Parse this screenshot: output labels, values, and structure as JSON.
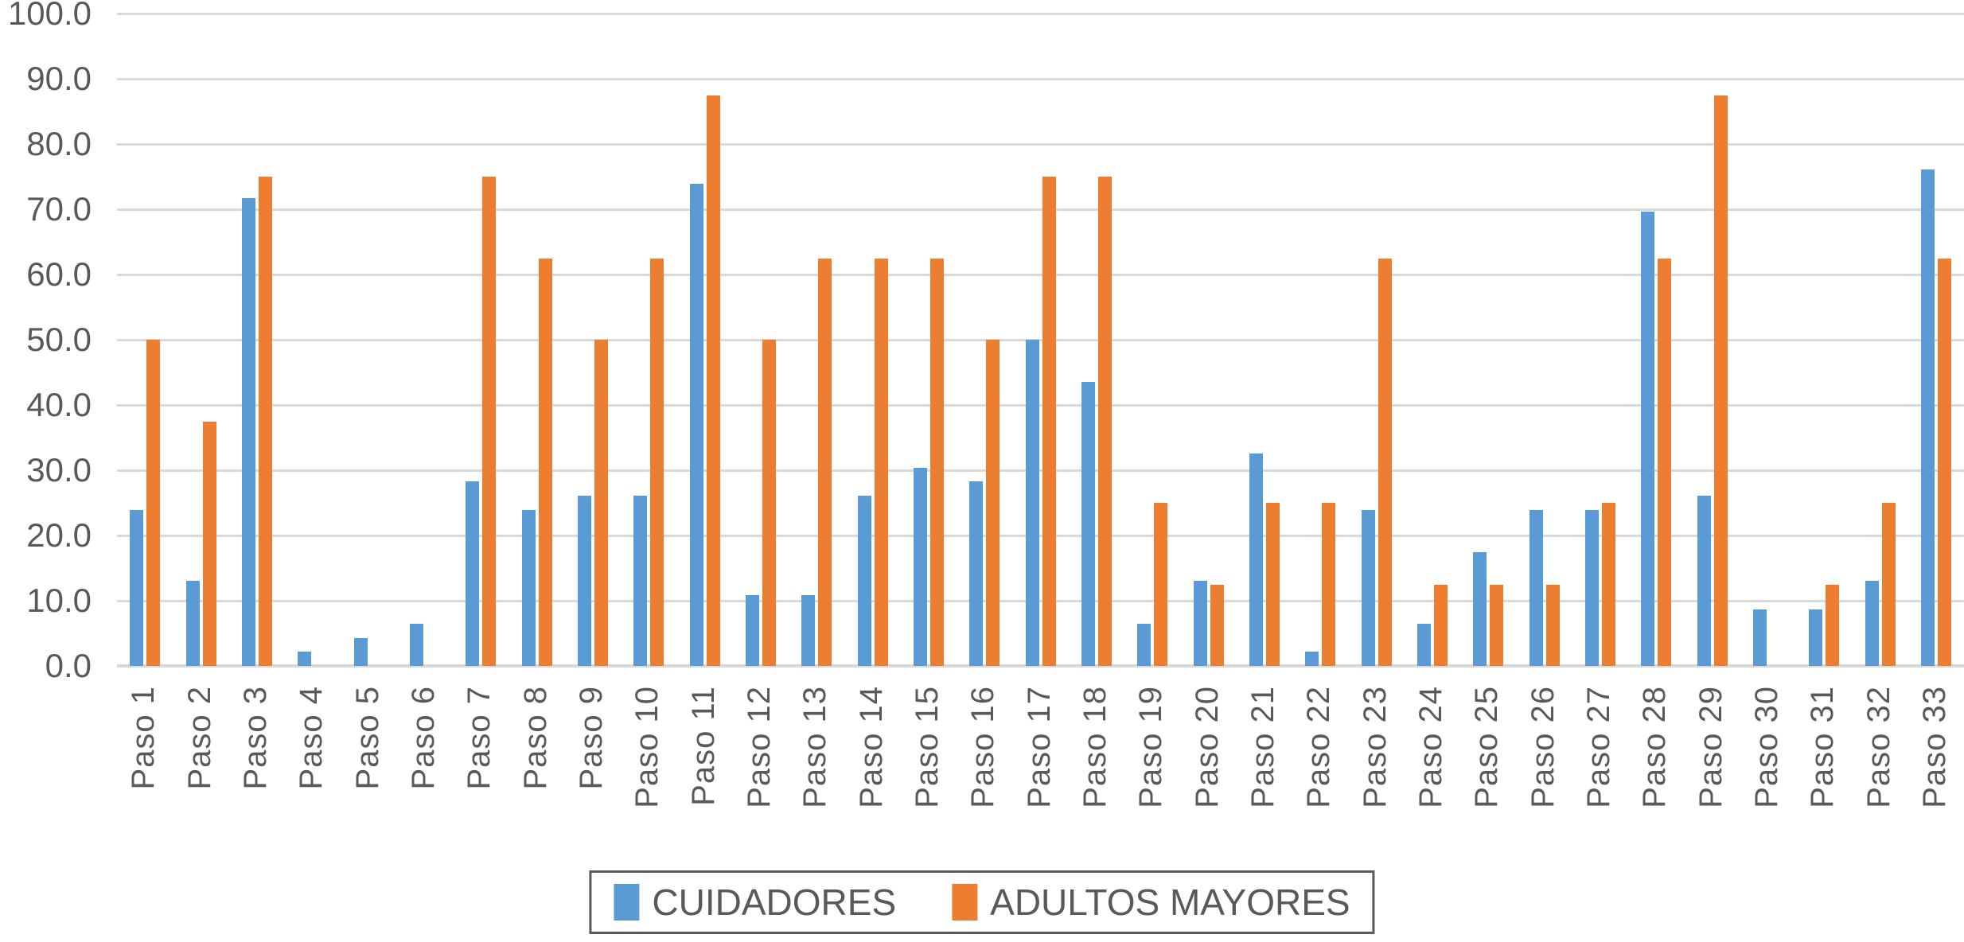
{
  "chart_data": {
    "type": "bar",
    "title": "",
    "xlabel": "",
    "ylabel": "",
    "ylim": [
      0,
      100
    ],
    "ytick_step": 10,
    "ytick_labels": [
      "0.0",
      "10.0",
      "20.0",
      "30.0",
      "40.0",
      "50.0",
      "60.0",
      "70.0",
      "80.0",
      "90.0",
      "100.0"
    ],
    "grid": true,
    "legend_position": "bottom-center",
    "categories": [
      "Paso 1",
      "Paso 2",
      "Paso 3",
      "Paso 4",
      "Paso 5",
      "Paso 6",
      "Paso 7",
      "Paso 8",
      "Paso 9",
      "Paso 10",
      "Paso 11",
      "Paso 12",
      "Paso 13",
      "Paso 14",
      "Paso 15",
      "Paso 16",
      "Paso 17",
      "Paso 18",
      "Paso 19",
      "Paso 20",
      "Paso 21",
      "Paso 22",
      "Paso 23",
      "Paso 24",
      "Paso 25",
      "Paso 26",
      "Paso 27",
      "Paso 28",
      "Paso 29",
      "Paso 30",
      "Paso 31",
      "Paso 32",
      "Paso 33"
    ],
    "series": [
      {
        "name": "CUIDADORES",
        "color": "#5B9BD5",
        "values": [
          23.9,
          13.0,
          71.7,
          2.2,
          4.3,
          6.5,
          28.3,
          23.9,
          26.1,
          26.1,
          73.9,
          10.9,
          10.9,
          26.1,
          30.4,
          28.3,
          50.0,
          43.5,
          6.5,
          13.0,
          32.6,
          2.2,
          23.9,
          6.5,
          17.4,
          23.9,
          23.9,
          69.6,
          26.1,
          8.7,
          8.7,
          13.0,
          76.1
        ]
      },
      {
        "name": "ADULTOS MAYORES",
        "color": "#ED7D31",
        "values": [
          50.0,
          37.5,
          75.0,
          0.0,
          0.0,
          0.0,
          75.0,
          62.5,
          50.0,
          62.5,
          87.5,
          50.0,
          62.5,
          62.5,
          62.5,
          50.0,
          75.0,
          75.0,
          25.0,
          12.5,
          25.0,
          25.0,
          62.5,
          12.5,
          12.5,
          12.5,
          25.0,
          62.5,
          87.5,
          0.0,
          12.5,
          25.0,
          62.5
        ]
      }
    ]
  },
  "colors": {
    "gridline": "#d9d9d9",
    "axis_text": "#595959",
    "legend_border": "#595959",
    "background": "#ffffff"
  },
  "legend": {
    "item1_label": "CUIDADORES",
    "item2_label": "ADULTOS MAYORES"
  }
}
